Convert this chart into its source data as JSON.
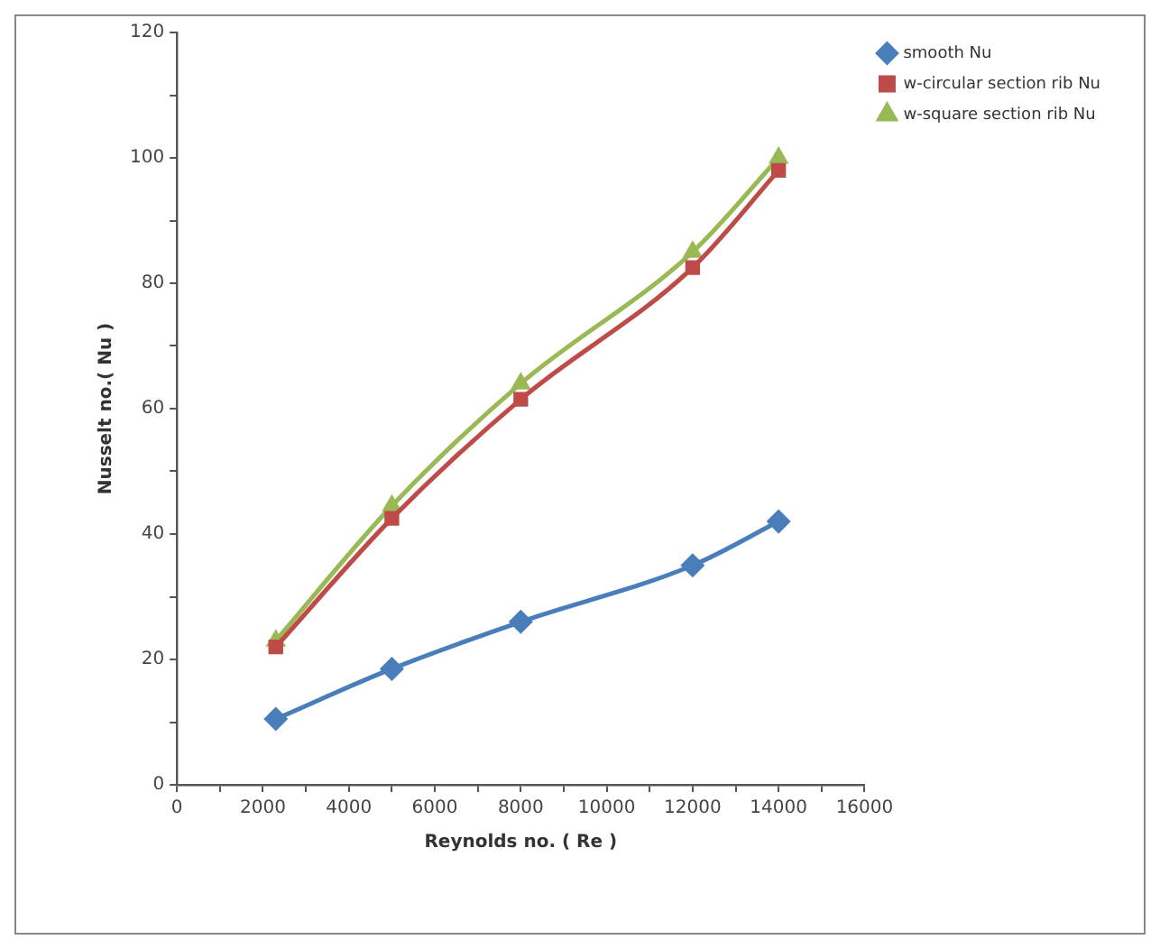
{
  "chart_data": {
    "type": "line",
    "xlabel": "Reynolds no. ( Re )",
    "ylabel": "Nusselt no.( Nu )",
    "xlim": [
      0,
      16000
    ],
    "xticks": [
      0,
      {
        "value": 1000,
        "label": null
      },
      2000,
      {
        "value": 3000,
        "label": null
      },
      4000,
      {
        "value": 5000,
        "label": null
      },
      6000,
      {
        "value": 7000,
        "label": null
      },
      8000,
      {
        "value": 9000,
        "label": null
      },
      10000,
      {
        "value": 11000,
        "label": null
      },
      12000,
      {
        "value": 13000,
        "label": null
      },
      14000,
      {
        "value": 15000,
        "label": null
      },
      16000
    ],
    "ylim": [
      0,
      120
    ],
    "yticks": [
      0,
      {
        "value": 10,
        "label": null
      },
      20,
      {
        "value": 30,
        "label": null
      },
      40,
      {
        "value": 50,
        "label": null
      },
      60,
      {
        "value": 70,
        "label": null
      },
      80,
      {
        "value": 90,
        "label": null
      },
      100,
      {
        "value": 110,
        "label": null
      },
      120
    ],
    "x": [
      2300,
      5000,
      8000,
      12000,
      14000
    ],
    "series": [
      {
        "name": "smooth Nu",
        "color": "#4a7ebb",
        "marker": "diamond",
        "values": [
          10.5,
          18.5,
          26,
          35,
          42
        ]
      },
      {
        "name": "w-circular section rib Nu",
        "color": "#be4b48",
        "marker": "square",
        "values": [
          22,
          42.5,
          61.5,
          82.5,
          98
        ]
      },
      {
        "name": "w-square section rib Nu",
        "color": "#98b954",
        "marker": "triangle",
        "values": [
          23,
          44.5,
          64,
          85,
          100
        ]
      }
    ],
    "grid": false,
    "legend": "top right"
  }
}
